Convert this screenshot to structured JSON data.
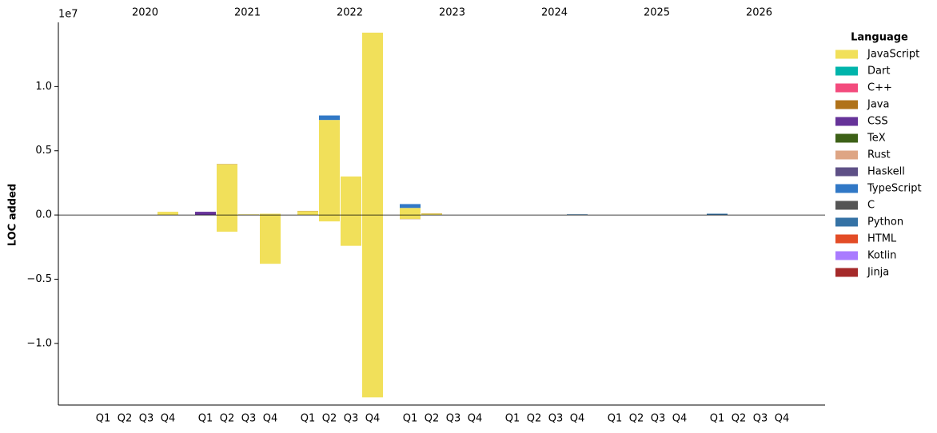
{
  "chart_data": {
    "type": "bar",
    "ylabel": "LOC added",
    "y_offset_label": "1e7",
    "legend_title": "Language",
    "legend": "upper right outside",
    "ylim": [
      -14800000,
      15000000
    ],
    "yticks": [
      {
        "value": -10000000,
        "label": "−1.0"
      },
      {
        "value": -5000000,
        "label": "−0.5"
      },
      {
        "value": 0,
        "label": "0.0"
      },
      {
        "value": 5000000,
        "label": "0.5"
      },
      {
        "value": 10000000,
        "label": "1.0"
      }
    ],
    "groups": [
      "2020",
      "2021",
      "2022",
      "2023",
      "2024",
      "2025",
      "2026"
    ],
    "categories": [
      "Q1",
      "Q2",
      "Q3",
      "Q4",
      "Q1",
      "Q2",
      "Q3",
      "Q4",
      "Q1",
      "Q2",
      "Q3",
      "Q4",
      "Q1",
      "Q2",
      "Q3",
      "Q4",
      "Q1",
      "Q2",
      "Q3",
      "Q4",
      "Q1",
      "Q2",
      "Q3",
      "Q4",
      "Q1",
      "Q2",
      "Q3",
      "Q4"
    ],
    "series": [
      {
        "name": "JavaScript",
        "color": "#f1e05a",
        "values": [
          0,
          0,
          0,
          250000,
          0,
          3950000,
          50000,
          100000,
          300000,
          7400000,
          3000000,
          14200000,
          550000,
          100000,
          0,
          0,
          0,
          0,
          0,
          0,
          0,
          0,
          0,
          0,
          0,
          0,
          0,
          0
        ],
        "negative_values": [
          0,
          0,
          0,
          0,
          0,
          -1300000,
          0,
          -3800000,
          0,
          -500000,
          -2400000,
          -14200000,
          -300000,
          0,
          0,
          0,
          0,
          0,
          0,
          0,
          0,
          0,
          0,
          0,
          0,
          0,
          0,
          0
        ]
      },
      {
        "name": "Dart",
        "color": "#00b4ab",
        "values": [
          0,
          0,
          0,
          0,
          0,
          0,
          0,
          0,
          0,
          0,
          0,
          0,
          0,
          0,
          0,
          0,
          0,
          0,
          0,
          0,
          0,
          0,
          0,
          0,
          0,
          0,
          0,
          0
        ]
      },
      {
        "name": "C++",
        "color": "#f34b7d",
        "values": [
          0,
          0,
          0,
          0,
          0,
          0,
          0,
          0,
          0,
          0,
          0,
          0,
          0,
          0,
          0,
          0,
          0,
          0,
          0,
          0,
          0,
          0,
          0,
          0,
          0,
          0,
          0,
          0
        ]
      },
      {
        "name": "Java",
        "color": "#b07219",
        "values": [
          0,
          0,
          0,
          0,
          0,
          20000,
          0,
          0,
          20000,
          0,
          0,
          0,
          0,
          20000,
          0,
          0,
          0,
          0,
          0,
          0,
          0,
          0,
          0,
          0,
          0,
          0,
          0,
          0
        ],
        "negative_values": [
          0,
          0,
          0,
          0,
          0,
          0,
          0,
          0,
          0,
          0,
          0,
          0,
          -20000,
          0,
          0,
          0,
          0,
          0,
          0,
          0,
          0,
          0,
          0,
          0,
          0,
          0,
          0,
          0
        ]
      },
      {
        "name": "CSS",
        "color": "#663399",
        "values": [
          0,
          0,
          0,
          0,
          250000,
          0,
          0,
          0,
          0,
          0,
          0,
          0,
          0,
          0,
          0,
          0,
          0,
          0,
          0,
          0,
          0,
          0,
          0,
          0,
          0,
          0,
          0,
          0
        ]
      },
      {
        "name": "TeX",
        "color": "#3d6117",
        "values": [
          0,
          0,
          0,
          0,
          0,
          0,
          0,
          0,
          0,
          0,
          0,
          0,
          0,
          0,
          0,
          0,
          0,
          0,
          0,
          0,
          0,
          0,
          0,
          0,
          0,
          0,
          0,
          0
        ]
      },
      {
        "name": "Rust",
        "color": "#dea584",
        "values": [
          0,
          0,
          0,
          0,
          0,
          0,
          0,
          0,
          0,
          0,
          0,
          0,
          0,
          0,
          0,
          0,
          0,
          0,
          0,
          0,
          0,
          0,
          0,
          0,
          0,
          0,
          0,
          0
        ]
      },
      {
        "name": "Haskell",
        "color": "#5e5086",
        "values": [
          0,
          0,
          0,
          0,
          0,
          0,
          0,
          0,
          0,
          0,
          0,
          0,
          0,
          0,
          0,
          0,
          0,
          0,
          0,
          0,
          0,
          0,
          0,
          0,
          0,
          0,
          0,
          0
        ]
      },
      {
        "name": "TypeScript",
        "color": "#3178c6",
        "values": [
          0,
          0,
          0,
          0,
          0,
          0,
          0,
          0,
          0,
          350000,
          0,
          0,
          300000,
          0,
          0,
          0,
          0,
          0,
          0,
          0,
          0,
          0,
          0,
          0,
          0,
          0,
          0,
          0
        ]
      },
      {
        "name": "C",
        "color": "#555555",
        "values": [
          0,
          0,
          0,
          0,
          0,
          0,
          0,
          0,
          0,
          0,
          0,
          0,
          0,
          0,
          0,
          0,
          0,
          0,
          0,
          0,
          0,
          0,
          0,
          0,
          0,
          0,
          0,
          0
        ],
        "negative_values": [
          0,
          0,
          0,
          0,
          0,
          0,
          0,
          0,
          0,
          0,
          0,
          0,
          0,
          0,
          0,
          0,
          0,
          -20000,
          0,
          0,
          0,
          0,
          0,
          0,
          0,
          0,
          0,
          0
        ]
      },
      {
        "name": "Python",
        "color": "#3572a5",
        "values": [
          0,
          0,
          0,
          0,
          0,
          0,
          0,
          0,
          0,
          0,
          0,
          0,
          0,
          0,
          0,
          0,
          0,
          0,
          0,
          50000,
          0,
          0,
          0,
          0,
          100000,
          0,
          0,
          0
        ]
      },
      {
        "name": "HTML",
        "color": "#e34c26",
        "values": [
          0,
          0,
          0,
          0,
          0,
          0,
          0,
          0,
          0,
          0,
          0,
          0,
          0,
          0,
          0,
          0,
          0,
          0,
          0,
          0,
          0,
          0,
          0,
          0,
          0,
          0,
          0,
          0
        ]
      },
      {
        "name": "Kotlin",
        "color": "#a97bff",
        "values": [
          0,
          0,
          0,
          0,
          0,
          0,
          0,
          0,
          0,
          0,
          0,
          0,
          0,
          0,
          0,
          0,
          0,
          0,
          0,
          0,
          0,
          0,
          0,
          0,
          0,
          0,
          0,
          0
        ]
      },
      {
        "name": "Jinja",
        "color": "#a52a2a",
        "values": [
          0,
          0,
          0,
          0,
          0,
          0,
          0,
          0,
          0,
          0,
          0,
          0,
          0,
          0,
          0,
          0,
          0,
          0,
          0,
          0,
          0,
          0,
          0,
          0,
          0,
          0,
          0,
          0
        ]
      }
    ]
  }
}
